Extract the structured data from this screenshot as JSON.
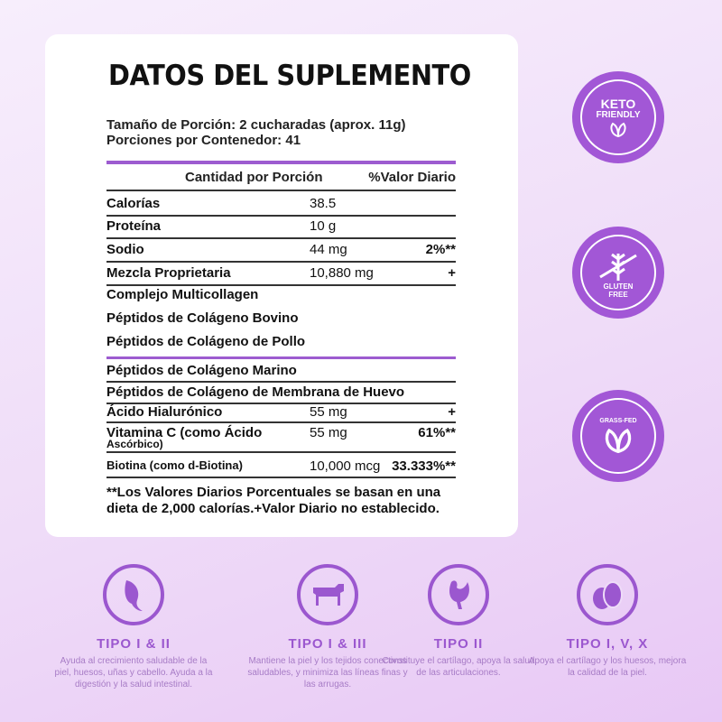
{
  "title": "DATOS DEL SUPLEMENTO",
  "serving_size": "Tamaño de Porción: 2 cucharadas (aprox. 11g)",
  "servings_per_container": "Porciones por Contenedor: 41",
  "header": {
    "amount": "Cantidad por Porción",
    "dv": "%Valor Diario"
  },
  "rows": [
    {
      "name": "Calorías",
      "amount": "38.5",
      "dv": ""
    },
    {
      "name": "Proteína",
      "amount": "10 g",
      "dv": ""
    },
    {
      "name": "Sodio",
      "amount": "44 mg",
      "dv": "2%**"
    },
    {
      "name": "Mezcla Proprietaria",
      "amount": "10,880 mg",
      "dv": "+"
    },
    {
      "name": "Complejo Multicollagen",
      "amount": "",
      "dv": ""
    },
    {
      "name": "Péptidos de Colágeno Bovino",
      "amount": "",
      "dv": ""
    },
    {
      "name": "Péptidos de Colágeno de Pollo",
      "amount": "",
      "dv": ""
    },
    {
      "name": "Péptidos de Colágeno Marino",
      "amount": "",
      "dv": ""
    },
    {
      "name": "Péptidos de Colágeno de Membrana de Huevo",
      "amount": "",
      "dv": ""
    },
    {
      "name": "Ácido Hialurónico",
      "amount": "55 mg",
      "dv": "+"
    },
    {
      "name": "Vitamina C (como Ácido",
      "name2": "Ascórbico)",
      "amount": "55 mg",
      "dv": "61%**"
    },
    {
      "name": "Biotina (como d-Biotina)",
      "amount": "10,000 mcg",
      "dv": "33.333%**"
    }
  ],
  "footnote": "**Los Valores Diarios Porcentuales se basan en una dieta de 2,000 calorías.+Valor Diario no establecido.",
  "badges": [
    {
      "line1": "KETO",
      "line2": "FRIENDLY",
      "icon": "leaf-icon"
    },
    {
      "line1": "GLUTEN",
      "line2": "FREE",
      "icon": "wheat-crossed-icon"
    },
    {
      "line1": "GRASS-FED",
      "line2": "",
      "icon": "leaf-icon"
    }
  ],
  "types": [
    {
      "title": "TIPO I & II",
      "desc": "Ayuda al crecimiento saludable de la piel, huesos, uñas y cabello. Ayuda a la digestión y la salud intestinal.",
      "icon": "fish-icon"
    },
    {
      "title": "TIPO I & III",
      "desc": "Mantiene la piel y los tejidos conectivos saludables, y minimiza las líneas finas y las arrugas.",
      "icon": "cow-icon"
    },
    {
      "title": "TIPO II",
      "desc": "Constituye el cartílago, apoya la salud de las articulaciones.",
      "icon": "chicken-icon"
    },
    {
      "title": "TIPO I, V, X",
      "desc": "Apoya el cartílago y los huesos, mejora la calidad de la piel.",
      "icon": "egg-icon"
    }
  ],
  "colors": {
    "accent": "#9d5cd0",
    "badge": "#a257d6"
  }
}
